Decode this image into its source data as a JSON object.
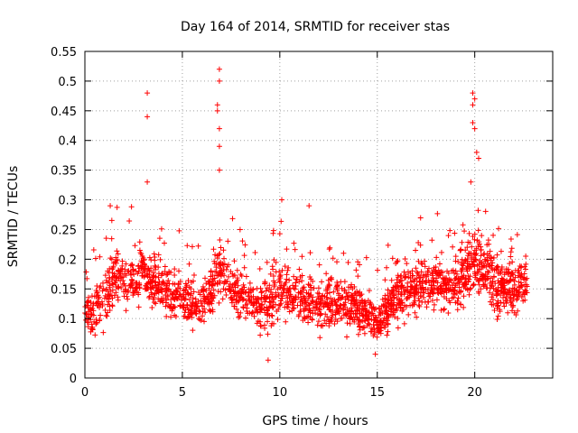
{
  "chart_data": {
    "type": "scatter",
    "title": "Day 164 of 2014, SRMTID for receiver stas",
    "xlabel": "GPS time / hours",
    "ylabel": "SRMTID / TECUs",
    "xlim": [
      0,
      24
    ],
    "ylim": [
      0,
      0.55
    ],
    "x_ticks": [
      0,
      5,
      10,
      15,
      20
    ],
    "y_ticks": [
      0,
      0.05,
      0.1,
      0.15,
      0.2,
      0.25,
      0.3,
      0.35,
      0.4,
      0.45,
      0.5,
      0.55
    ],
    "x_tick_labels": [
      "0",
      "5",
      "10",
      "15",
      "20"
    ],
    "y_tick_labels": [
      "0",
      "0.05",
      "0.1",
      "0.15",
      "0.2",
      "0.25",
      "0.3",
      "0.35",
      "0.4",
      "0.45",
      "0.5",
      "0.55"
    ],
    "grid": true,
    "marker": "+",
    "series": [
      {
        "name": "SRMTID",
        "color": "#ff0000",
        "x_range": [
          0,
          22.7
        ],
        "notable_points": [
          {
            "x": 3.2,
            "y": 0.48
          },
          {
            "x": 3.2,
            "y": 0.44
          },
          {
            "x": 3.2,
            "y": 0.33
          },
          {
            "x": 6.9,
            "y": 0.52
          },
          {
            "x": 6.9,
            "y": 0.5
          },
          {
            "x": 6.8,
            "y": 0.46
          },
          {
            "x": 6.8,
            "y": 0.45
          },
          {
            "x": 6.9,
            "y": 0.42
          },
          {
            "x": 6.9,
            "y": 0.39
          },
          {
            "x": 6.9,
            "y": 0.35
          },
          {
            "x": 19.9,
            "y": 0.48
          },
          {
            "x": 20.0,
            "y": 0.47
          },
          {
            "x": 19.9,
            "y": 0.46
          },
          {
            "x": 19.9,
            "y": 0.43
          },
          {
            "x": 20.0,
            "y": 0.42
          },
          {
            "x": 20.1,
            "y": 0.38
          },
          {
            "x": 20.2,
            "y": 0.37
          },
          {
            "x": 19.8,
            "y": 0.33
          },
          {
            "x": 10.1,
            "y": 0.3
          },
          {
            "x": 11.5,
            "y": 0.29
          },
          {
            "x": 1.3,
            "y": 0.29
          },
          {
            "x": 14.9,
            "y": 0.04
          },
          {
            "x": 9.4,
            "y": 0.03
          }
        ],
        "profile": [
          {
            "x": 0.0,
            "center": 0.12,
            "spread": 0.05
          },
          {
            "x": 0.5,
            "center": 0.11,
            "spread": 0.05
          },
          {
            "x": 1.0,
            "center": 0.13,
            "spread": 0.06
          },
          {
            "x": 1.5,
            "center": 0.17,
            "spread": 0.05
          },
          {
            "x": 2.5,
            "center": 0.16,
            "spread": 0.05
          },
          {
            "x": 3.0,
            "center": 0.18,
            "spread": 0.05
          },
          {
            "x": 3.5,
            "center": 0.16,
            "spread": 0.05
          },
          {
            "x": 4.0,
            "center": 0.15,
            "spread": 0.05
          },
          {
            "x": 5.0,
            "center": 0.13,
            "spread": 0.04
          },
          {
            "x": 6.0,
            "center": 0.12,
            "spread": 0.05
          },
          {
            "x": 7.0,
            "center": 0.18,
            "spread": 0.05
          },
          {
            "x": 8.0,
            "center": 0.14,
            "spread": 0.05
          },
          {
            "x": 9.0,
            "center": 0.12,
            "spread": 0.05
          },
          {
            "x": 10.0,
            "center": 0.15,
            "spread": 0.06
          },
          {
            "x": 11.0,
            "center": 0.13,
            "spread": 0.05
          },
          {
            "x": 12.0,
            "center": 0.12,
            "spread": 0.05
          },
          {
            "x": 13.0,
            "center": 0.13,
            "spread": 0.05
          },
          {
            "x": 14.0,
            "center": 0.12,
            "spread": 0.05
          },
          {
            "x": 15.0,
            "center": 0.09,
            "spread": 0.03
          },
          {
            "x": 15.5,
            "center": 0.11,
            "spread": 0.05
          },
          {
            "x": 16.0,
            "center": 0.14,
            "spread": 0.05
          },
          {
            "x": 17.0,
            "center": 0.15,
            "spread": 0.05
          },
          {
            "x": 18.0,
            "center": 0.16,
            "spread": 0.06
          },
          {
            "x": 19.0,
            "center": 0.15,
            "spread": 0.05
          },
          {
            "x": 20.0,
            "center": 0.2,
            "spread": 0.07
          },
          {
            "x": 21.0,
            "center": 0.16,
            "spread": 0.07
          },
          {
            "x": 22.0,
            "center": 0.15,
            "spread": 0.05
          },
          {
            "x": 22.7,
            "center": 0.16,
            "spread": 0.05
          }
        ]
      }
    ]
  }
}
